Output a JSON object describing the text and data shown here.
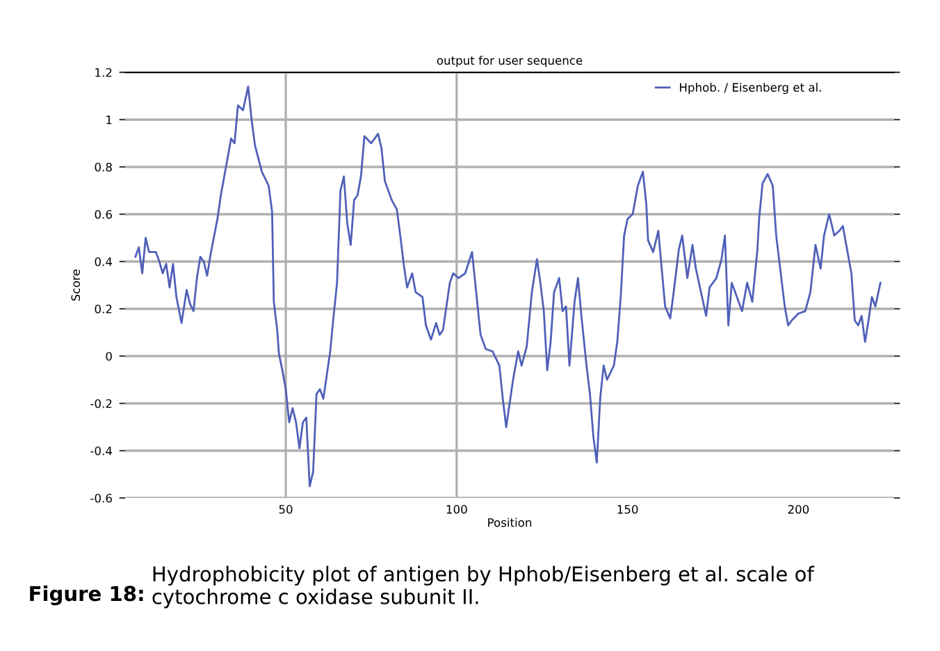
{
  "chart_data": {
    "type": "line",
    "title": "output for user sequence",
    "xlabel": "Position",
    "ylabel": "Score",
    "annotations": [
      "Figure 18:",
      "Hydrophobicity plot of antigen by Hphob/Eisenberg et al. scale of cytochrome c oxidase subunit II."
    ],
    "xlim": [
      3,
      228
    ],
    "xticks": [
      50,
      100,
      150,
      200
    ],
    "ylim": [
      -0.6,
      1.2
    ],
    "yticks": [
      -0.6,
      -0.4,
      -0.2,
      0,
      0.2,
      0.4,
      0.6,
      0.8,
      1,
      1.2
    ],
    "grid": "y",
    "legend": "top right",
    "marker": "none",
    "line_style": "solid",
    "ref_lines": [
      {
        "axis": "x",
        "value": 50,
        "color": "#b0b0b0"
      },
      {
        "axis": "x",
        "value": 100,
        "color": "#b0b0b0"
      }
    ],
    "series": [
      {
        "name": "Hphob. / Eisenberg et al.",
        "color": "#5060b8",
        "x": [
          6,
          7,
          8,
          9,
          10,
          12,
          13,
          14,
          15,
          16,
          17,
          18,
          19.5,
          21,
          22,
          23,
          24,
          25,
          26,
          27,
          28,
          30,
          31,
          32,
          34,
          35,
          36,
          37.5,
          39,
          40,
          41,
          43,
          45,
          46,
          46.5,
          47.5,
          48,
          49,
          50,
          51,
          52,
          53,
          54,
          55,
          56,
          57,
          58,
          59,
          60,
          61,
          62,
          63,
          64,
          65,
          66,
          67,
          68,
          69,
          70,
          71,
          72,
          73,
          75,
          77,
          78,
          79,
          81,
          82.5,
          83.5,
          84.5,
          85.5,
          87,
          88,
          90,
          91,
          92.5,
          94,
          95,
          96,
          98,
          99,
          100.5,
          102.5,
          104.5,
          106,
          107,
          108.5,
          110.5,
          112.5,
          113.5,
          114.5,
          115.5,
          116.5,
          118,
          119,
          120.5,
          122,
          123.5,
          124.5,
          125.5,
          126.5,
          127.5,
          128.5,
          130,
          131,
          132,
          133,
          134.5,
          135.5,
          136.5,
          138,
          139,
          140,
          141,
          142,
          143,
          144,
          146,
          147,
          148,
          149,
          150,
          151.5,
          153,
          154.5,
          155.5,
          156,
          157.5,
          159,
          160,
          161,
          162.5,
          163.5,
          165,
          166,
          167.5,
          169,
          170,
          171.5,
          173,
          174,
          176,
          177.5,
          178.5,
          179.5,
          180.5,
          182,
          183.5,
          185,
          186.5,
          188,
          188.5,
          189.5,
          191,
          192.5,
          193.5,
          194.5,
          196,
          197,
          198,
          200,
          202,
          203.5,
          205,
          206.5,
          207.5,
          209,
          210.5,
          212,
          213,
          214,
          215.5,
          216.5,
          217.5,
          218.5,
          219.5,
          220.5,
          221.5,
          222.5,
          224
        ],
        "values": [
          0.42,
          0.46,
          0.35,
          0.5,
          0.44,
          0.44,
          0.4,
          0.35,
          0.39,
          0.29,
          0.39,
          0.25,
          0.14,
          0.28,
          0.22,
          0.19,
          0.33,
          0.42,
          0.4,
          0.34,
          0.43,
          0.58,
          0.68,
          0.76,
          0.92,
          0.9,
          1.06,
          1.04,
          1.14,
          1.0,
          0.89,
          0.78,
          0.72,
          0.61,
          0.23,
          0.11,
          0.01,
          -0.06,
          -0.14,
          -0.28,
          -0.22,
          -0.28,
          -0.39,
          -0.28,
          -0.26,
          -0.55,
          -0.49,
          -0.16,
          -0.14,
          -0.18,
          -0.08,
          0.02,
          0.17,
          0.31,
          0.7,
          0.76,
          0.56,
          0.47,
          0.66,
          0.68,
          0.76,
          0.93,
          0.9,
          0.94,
          0.88,
          0.74,
          0.66,
          0.62,
          0.51,
          0.39,
          0.29,
          0.35,
          0.27,
          0.25,
          0.13,
          0.07,
          0.14,
          0.09,
          0.11,
          0.31,
          0.35,
          0.33,
          0.35,
          0.44,
          0.23,
          0.09,
          0.03,
          0.02,
          -0.04,
          -0.18,
          -0.3,
          -0.2,
          -0.1,
          0.02,
          -0.04,
          0.04,
          0.27,
          0.41,
          0.31,
          0.19,
          -0.06,
          0.06,
          0.27,
          0.33,
          0.19,
          0.21,
          -0.04,
          0.23,
          0.33,
          0.17,
          -0.04,
          -0.16,
          -0.34,
          -0.45,
          -0.18,
          -0.04,
          -0.1,
          -0.04,
          0.06,
          0.25,
          0.51,
          0.58,
          0.6,
          0.72,
          0.78,
          0.64,
          0.49,
          0.44,
          0.53,
          0.37,
          0.21,
          0.16,
          0.27,
          0.45,
          0.51,
          0.33,
          0.47,
          0.37,
          0.27,
          0.17,
          0.29,
          0.33,
          0.41,
          0.51,
          0.13,
          0.31,
          0.25,
          0.19,
          0.31,
          0.23,
          0.45,
          0.58,
          0.73,
          0.77,
          0.72,
          0.51,
          0.39,
          0.21,
          0.13,
          0.15,
          0.18,
          0.19,
          0.27,
          0.47,
          0.37,
          0.51,
          0.6,
          0.51,
          0.53,
          0.55,
          0.47,
          0.35,
          0.15,
          0.13,
          0.17,
          0.06,
          0.15,
          0.25,
          0.21,
          0.31
        ]
      }
    ]
  }
}
